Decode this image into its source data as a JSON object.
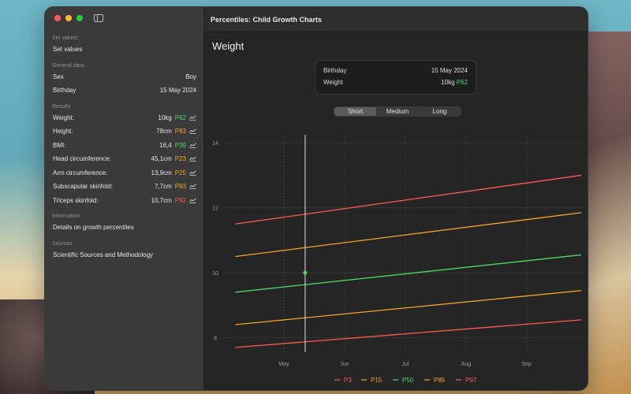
{
  "window": {
    "title": "Percentiles: Child Growth Charts"
  },
  "sidebar": {
    "set_values": {
      "header": "Set values",
      "item": "Set values"
    },
    "general": {
      "header": "General data",
      "rows": [
        {
          "label": "Sex",
          "value": "Boy"
        },
        {
          "label": "Birthday",
          "value": "15 May 2024"
        }
      ]
    },
    "results": {
      "header": "Results",
      "rows": [
        {
          "label": "Weight:",
          "value": "10kg",
          "percentile": "P62",
          "color": "#4cd964"
        },
        {
          "label": "Height:",
          "value": "78cm",
          "percentile": "P83",
          "color": "#f5a623"
        },
        {
          "label": "BMI:",
          "value": "16,4",
          "percentile": "P39",
          "color": "#4cd964"
        },
        {
          "label": "Head circumference:",
          "value": "45,1cm",
          "percentile": "P23",
          "color": "#f5a623"
        },
        {
          "label": "Arm circumference:",
          "value": "13,9cm",
          "percentile": "P25",
          "color": "#f5a623"
        },
        {
          "label": "Subscapular skinfold:",
          "value": "7,7cm",
          "percentile": "P83",
          "color": "#f5a623"
        },
        {
          "label": "Triceps skinfold:",
          "value": "10,7cm",
          "percentile": "P92",
          "color": "#ff5a4f"
        }
      ]
    },
    "information": {
      "header": "Information",
      "item": "Details on growth percentiles"
    },
    "sources": {
      "header": "Sources",
      "item": "Scientific Sources and Methodology"
    }
  },
  "main": {
    "page_title": "Weight",
    "info_card": {
      "birthday_label": "Birthday",
      "birthday_value": "15 May 2024",
      "weight_label": "Weight",
      "weight_value": "10kg",
      "weight_percentile": "P62"
    },
    "segmented": {
      "options": [
        "Short",
        "Medium",
        "Long"
      ],
      "selected": "Short"
    }
  },
  "chart_data": {
    "type": "line",
    "x_ticks": [
      "May",
      "Jun",
      "Jul",
      "Aug",
      "Sep"
    ],
    "y_ticks": [
      8,
      10,
      12,
      14
    ],
    "ylim": [
      7.6,
      14.2
    ],
    "x_range": [
      0,
      4.9
    ],
    "marker": {
      "x": 0.35,
      "y": 10.0,
      "color": "#4cd964"
    },
    "grid": true,
    "legend_position": "bottom",
    "series": [
      {
        "name": "P3",
        "color": "#ff5a4f",
        "x": [
          -0.8,
          4.9
        ],
        "y": [
          7.7,
          8.55
        ]
      },
      {
        "name": "P15",
        "color": "#f5a623",
        "x": [
          -0.8,
          4.9
        ],
        "y": [
          8.4,
          9.45
        ]
      },
      {
        "name": "P50",
        "color": "#4cd964",
        "x": [
          -0.8,
          4.9
        ],
        "y": [
          9.4,
          10.55
        ]
      },
      {
        "name": "P85",
        "color": "#f5a623",
        "x": [
          -0.8,
          4.9
        ],
        "y": [
          10.5,
          11.85
        ]
      },
      {
        "name": "P97",
        "color": "#ff5a4f",
        "x": [
          -0.8,
          4.9
        ],
        "y": [
          11.5,
          13.0
        ]
      }
    ]
  }
}
